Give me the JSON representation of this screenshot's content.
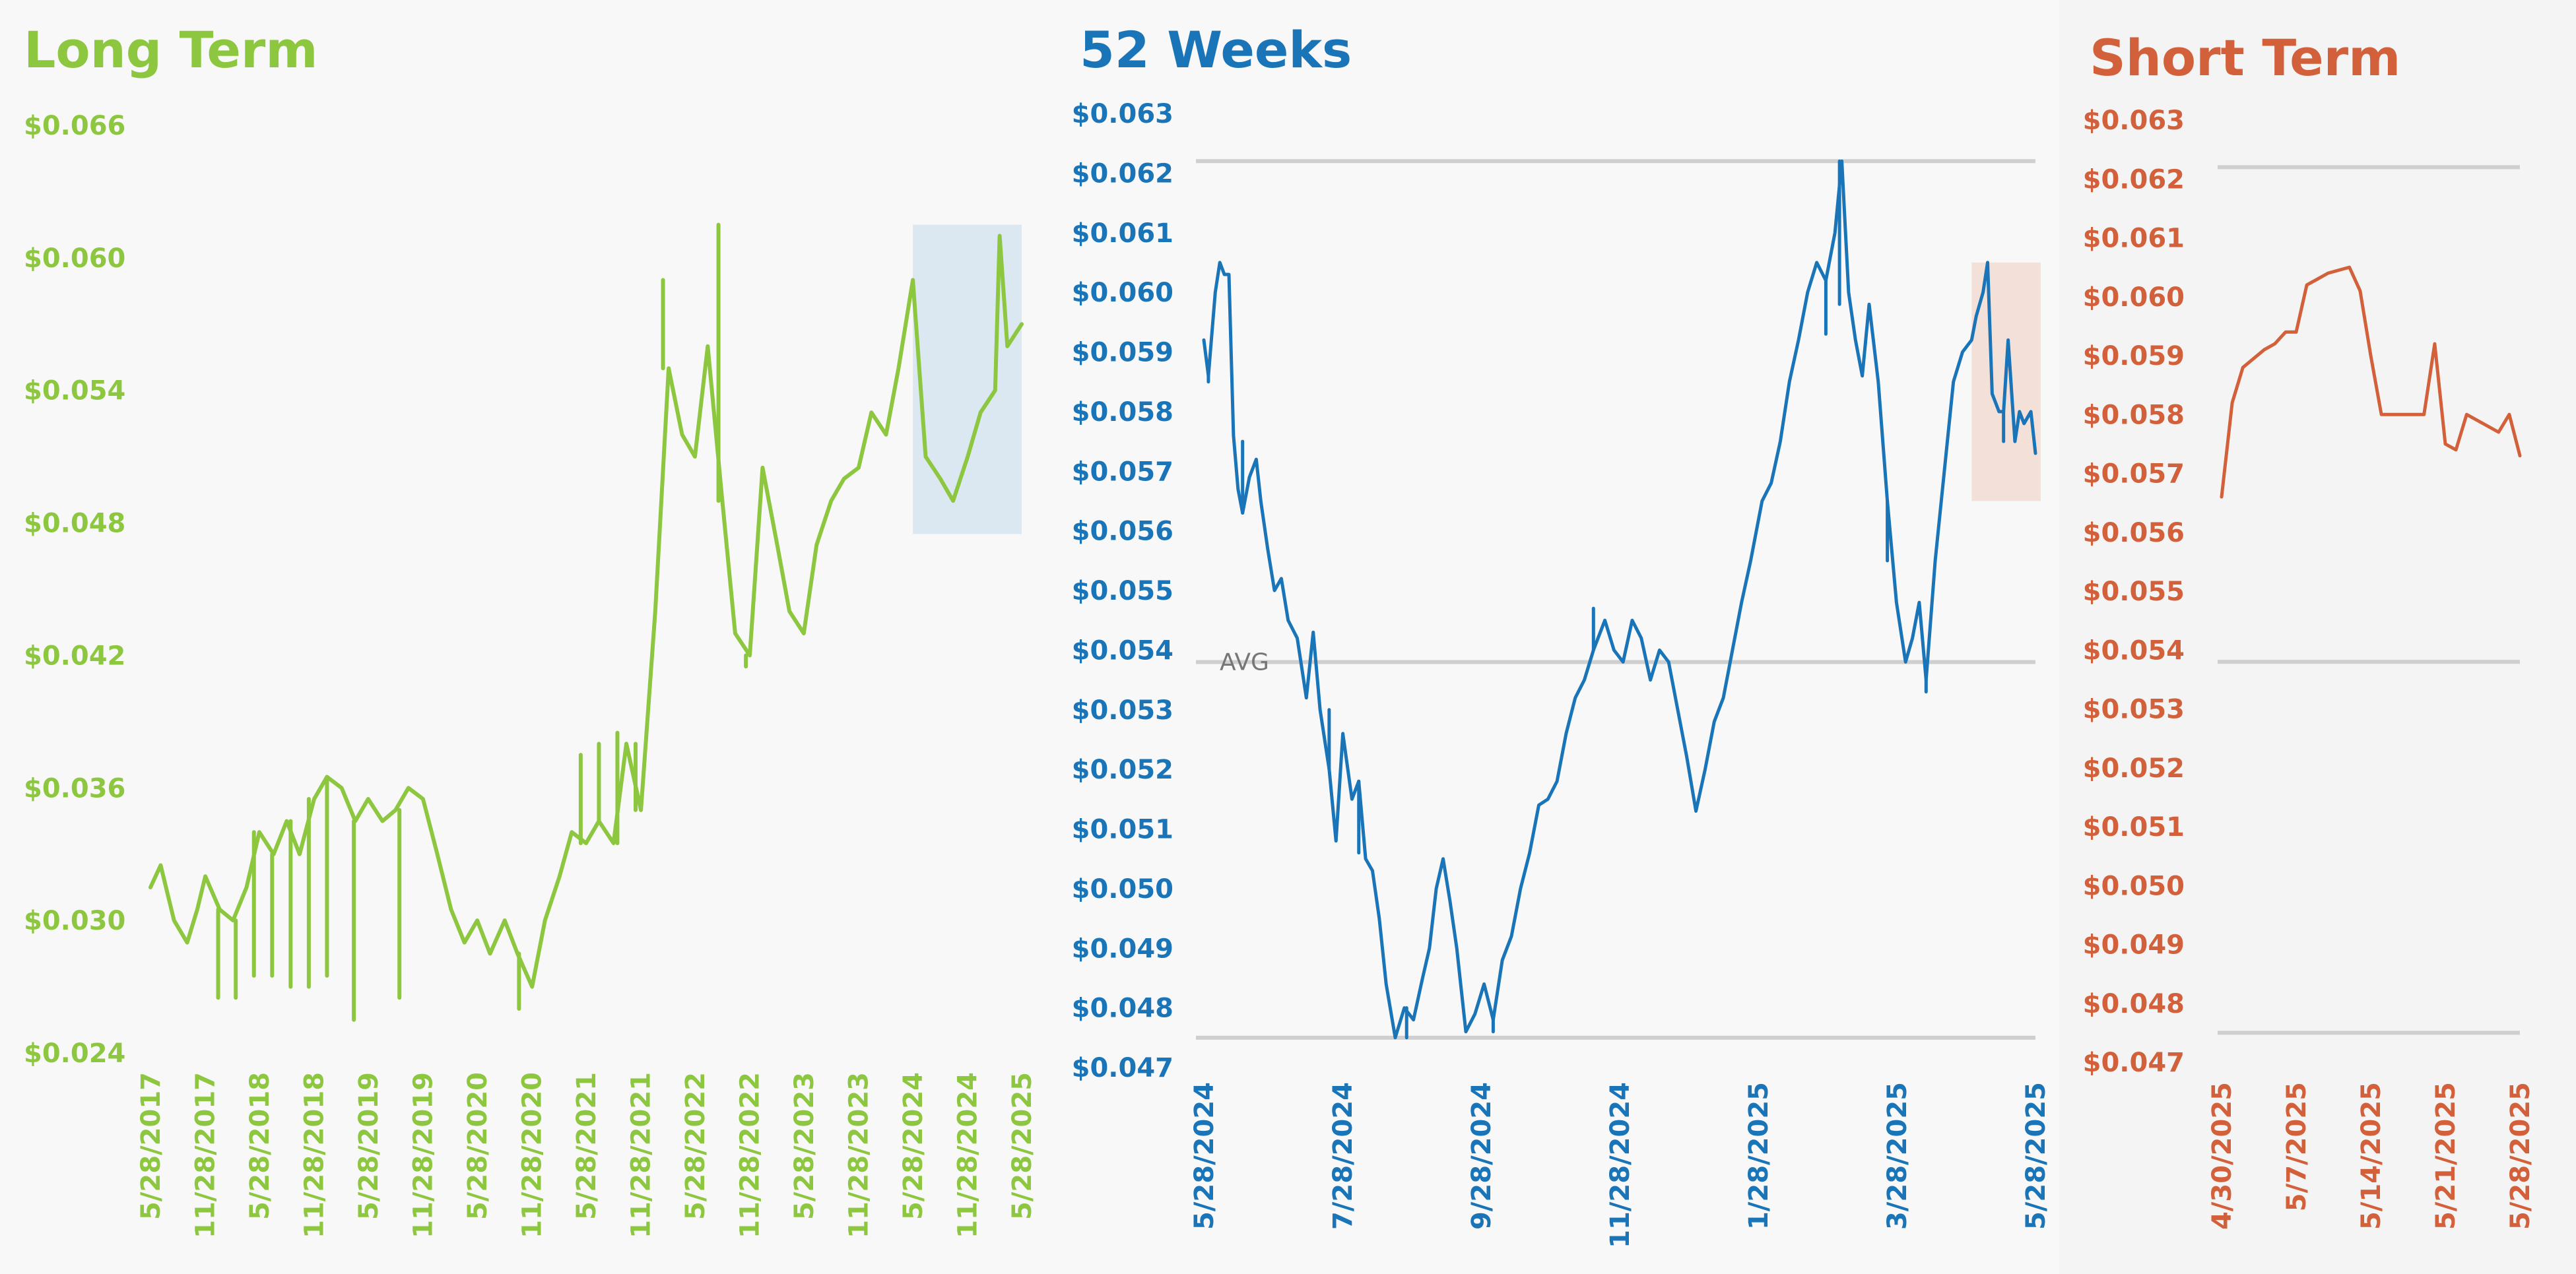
{
  "colors": {
    "long_term": "#8dc63f",
    "weeks_52": "#1a74b8",
    "short_term": "#d2603a",
    "gridline": "#cfcfcf",
    "highlight_blue": "#dbe8f2",
    "highlight_orange": "#f3e1d9"
  },
  "chart_data": [
    {
      "id": "long_term",
      "type": "line",
      "title": "Long Term",
      "ylim": [
        0.024,
        0.066
      ],
      "yticks": [
        "$0.066",
        "$0.060",
        "$0.054",
        "$0.048",
        "$0.042",
        "$0.036",
        "$0.030",
        "$0.024"
      ],
      "ytick_values": [
        0.066,
        0.06,
        0.054,
        0.048,
        0.042,
        0.036,
        0.03,
        0.024
      ],
      "xticks": [
        "5/28/2017",
        "11/28/2017",
        "5/28/2018",
        "11/28/2018",
        "5/28/2019",
        "11/28/2019",
        "5/28/2020",
        "11/28/2020",
        "5/28/2021",
        "11/28/2021",
        "5/28/2022",
        "11/28/2022",
        "5/28/2023",
        "11/28/2023",
        "5/28/2024",
        "11/28/2024",
        "5/28/2025"
      ],
      "xlim": [
        "5/28/2017",
        "5/28/2025"
      ],
      "grid": false,
      "highlight": {
        "x_from": "5/28/2024",
        "x_to": "5/28/2025",
        "y_from": 0.0475,
        "y_to": 0.0615
      },
      "series": [
        {
          "x": [
            "5/28/2017",
            "7/1/2017",
            "8/15/2017",
            "9/28/2017",
            "11/1/2017",
            "11/28/2017",
            "1/15/2018",
            "3/1/2018",
            "4/15/2018",
            "5/28/2018",
            "7/15/2018",
            "8/28/2018",
            "10/10/2018",
            "11/28/2018",
            "1/10/2019",
            "2/28/2019",
            "4/15/2019",
            "5/28/2019",
            "7/15/2019",
            "8/28/2019",
            "10/10/2019",
            "11/28/2019",
            "1/15/2020",
            "3/1/2020",
            "4/15/2020",
            "5/28/2020",
            "7/10/2020",
            "8/28/2020",
            "10/10/2020",
            "11/28/2020",
            "1/10/2021",
            "2/28/2021",
            "4/10/2021",
            "5/28/2021",
            "7/10/2021",
            "8/28/2021",
            "10/10/2021",
            "11/28/2021",
            "1/15/2022",
            "3/1/2022",
            "4/15/2022",
            "5/28/2022",
            "7/10/2022",
            "8/28/2022",
            "10/10/2022",
            "11/28/2022",
            "1/10/2023",
            "2/28/2023",
            "4/10/2023",
            "5/28/2023",
            "7/10/2023",
            "8/28/2023",
            "10/10/2023",
            "11/28/2023",
            "1/10/2024",
            "2/28/2024",
            "4/10/2024",
            "5/28/2024",
            "7/10/2024",
            "8/28/2024",
            "10/10/2024",
            "11/28/2024",
            "1/10/2025",
            "2/28/2025",
            "3/15/2025",
            "4/10/2025",
            "5/28/2025"
          ],
          "values": [
            0.0315,
            0.0325,
            0.03,
            0.029,
            0.0305,
            0.032,
            0.0305,
            0.03,
            0.0315,
            0.034,
            0.033,
            0.0345,
            0.033,
            0.0355,
            0.0365,
            0.036,
            0.0345,
            0.0355,
            0.0345,
            0.035,
            0.036,
            0.0355,
            0.033,
            0.0305,
            0.029,
            0.03,
            0.0285,
            0.03,
            0.0285,
            0.027,
            0.03,
            0.032,
            0.034,
            0.0335,
            0.0345,
            0.0335,
            0.038,
            0.035,
            0.044,
            0.055,
            0.052,
            0.051,
            0.056,
            0.049,
            0.043,
            0.042,
            0.0505,
            0.047,
            0.044,
            0.043,
            0.047,
            0.049,
            0.05,
            0.0505,
            0.053,
            0.052,
            0.055,
            0.059,
            0.051,
            0.05,
            0.049,
            0.051,
            0.053,
            0.054,
            0.061,
            0.056,
            0.057
          ],
          "spikes": [
            {
              "x": "1/10/2018",
              "value": 0.0265
            },
            {
              "x": "3/10/2018",
              "value": 0.0265
            },
            {
              "x": "5/10/2018",
              "value": 0.0275
            },
            {
              "x": "7/10/2018",
              "value": 0.0275
            },
            {
              "x": "9/10/2018",
              "value": 0.027
            },
            {
              "x": "11/10/2018",
              "value": 0.027
            },
            {
              "x": "1/10/2019",
              "value": 0.0275
            },
            {
              "x": "4/10/2019",
              "value": 0.0255
            },
            {
              "x": "9/10/2019",
              "value": 0.0265
            },
            {
              "x": "10/15/2020",
              "value": 0.026
            },
            {
              "x": "5/10/2021",
              "value": 0.0375
            },
            {
              "x": "7/10/2021",
              "value": 0.038
            },
            {
              "x": "9/10/2021",
              "value": 0.0385
            },
            {
              "x": "11/10/2021",
              "value": 0.038
            },
            {
              "x": "2/10/2022",
              "value": 0.059
            },
            {
              "x": "8/15/2022",
              "value": 0.0615
            },
            {
              "x": "11/15/2022",
              "value": 0.0415
            }
          ]
        }
      ]
    },
    {
      "id": "weeks_52",
      "type": "line",
      "title": "52 Weeks",
      "ylim": [
        0.047,
        0.063
      ],
      "yticks": [
        "$0.063",
        "$0.062",
        "$0.061",
        "$0.060",
        "$0.059",
        "$0.058",
        "$0.057",
        "$0.056",
        "$0.055",
        "$0.054",
        "$0.053",
        "$0.052",
        "$0.051",
        "$0.050",
        "$0.049",
        "$0.048",
        "$0.047"
      ],
      "ytick_values": [
        0.063,
        0.062,
        0.061,
        0.06,
        0.059,
        0.058,
        0.057,
        0.056,
        0.055,
        0.054,
        0.053,
        0.052,
        0.051,
        0.05,
        0.049,
        0.048,
        0.047
      ],
      "xticks": [
        "5/28/2024",
        "7/28/2024",
        "9/28/2024",
        "11/28/2024",
        "1/28/2025",
        "3/28/2025",
        "5/28/2025"
      ],
      "xlim": [
        "5/28/2024",
        "5/28/2025"
      ],
      "grid": false,
      "reference_lines": [
        {
          "value": 0.0622
        },
        {
          "value": 0.0538,
          "label": "AVG"
        },
        {
          "value": 0.0475
        }
      ],
      "highlight": {
        "x_from": "4/30/2025",
        "x_to": "5/28/2025",
        "y_from": 0.0565,
        "y_to": 0.0605
      },
      "series": [
        {
          "x": [
            "5/28/2024",
            "5/30/2024",
            "6/2/2024",
            "6/4/2024",
            "6/6/2024",
            "6/8/2024",
            "6/10/2024",
            "6/12/2024",
            "6/14/2024",
            "6/17/2024",
            "6/20/2024",
            "6/22/2024",
            "6/25/2024",
            "6/28/2024",
            "7/1/2024",
            "7/4/2024",
            "7/8/2024",
            "7/12/2024",
            "7/15/2024",
            "7/18/2024",
            "7/22/2024",
            "7/25/2024",
            "7/28/2024",
            "8/1/2024",
            "8/4/2024",
            "8/7/2024",
            "8/10/2024",
            "8/13/2024",
            "8/16/2024",
            "8/20/2024",
            "8/24/2024",
            "8/28/2024",
            "9/1/2024",
            "9/4/2024",
            "9/7/2024",
            "9/10/2024",
            "9/13/2024",
            "9/16/2024",
            "9/20/2024",
            "9/24/2024",
            "9/28/2024",
            "10/2/2024",
            "10/6/2024",
            "10/10/2024",
            "10/14/2024",
            "10/18/2024",
            "10/22/2024",
            "10/26/2024",
            "10/30/2024",
            "11/3/2024",
            "11/7/2024",
            "11/11/2024",
            "11/15/2024",
            "11/20/2024",
            "11/24/2024",
            "11/28/2024",
            "12/2/2024",
            "12/6/2024",
            "12/10/2024",
            "12/14/2024",
            "12/18/2024",
            "12/22/2024",
            "12/26/2024",
            "12/30/2024",
            "1/3/2025",
            "1/7/2025",
            "1/11/2025",
            "1/15/2025",
            "1/19/2025",
            "1/23/2025",
            "1/28/2025",
            "2/1/2025",
            "2/5/2025",
            "2/9/2025",
            "2/13/2025",
            "2/17/2025",
            "2/21/2025",
            "2/25/2025",
            "3/1/2025",
            "3/4/2025",
            "3/7/2025",
            "3/10/2025",
            "3/13/2025",
            "3/16/2025",
            "3/20/2025",
            "3/24/2025",
            "3/28/2025",
            "4/1/2025",
            "4/4/2025",
            "4/7/2025",
            "4/10/2025",
            "4/14/2025",
            "4/18/2025",
            "4/22/2025",
            "4/26/2025",
            "4/30/2025",
            "5/2/2025",
            "5/5/2025",
            "5/7/2025",
            "5/9/2025",
            "5/12/2025",
            "5/14/2025",
            "5/16/2025",
            "5/19/2025",
            "5/21/2025",
            "5/23/2025",
            "5/26/2025",
            "5/28/2025"
          ],
          "values": [
            0.0592,
            0.0586,
            0.06,
            0.0605,
            0.0603,
            0.0603,
            0.0576,
            0.0567,
            0.0563,
            0.0569,
            0.0572,
            0.0565,
            0.0557,
            0.055,
            0.0552,
            0.0545,
            0.0542,
            0.0532,
            0.0543,
            0.053,
            0.052,
            0.0508,
            0.0526,
            0.0515,
            0.0518,
            0.0505,
            0.0503,
            0.0495,
            0.0484,
            0.0475,
            0.048,
            0.0478,
            0.0485,
            0.049,
            0.05,
            0.0505,
            0.0498,
            0.049,
            0.0476,
            0.0479,
            0.0484,
            0.0478,
            0.0488,
            0.0492,
            0.05,
            0.0506,
            0.0514,
            0.0515,
            0.0518,
            0.0526,
            0.0532,
            0.0535,
            0.054,
            0.0545,
            0.054,
            0.0538,
            0.0545,
            0.0542,
            0.0535,
            0.054,
            0.0538,
            0.053,
            0.0522,
            0.0513,
            0.052,
            0.0528,
            0.0532,
            0.054,
            0.0548,
            0.0555,
            0.0565,
            0.0568,
            0.0575,
            0.0585,
            0.0592,
            0.06,
            0.0605,
            0.0602,
            0.061,
            0.0622,
            0.06,
            0.0592,
            0.0586,
            0.0598,
            0.0585,
            0.0565,
            0.0548,
            0.0538,
            0.0542,
            0.0548,
            0.0535,
            0.0555,
            0.057,
            0.0585,
            0.059,
            0.0592,
            0.0596,
            0.06,
            0.0605,
            0.0583,
            0.058,
            0.058,
            0.0592,
            0.0575,
            0.058,
            0.0578,
            0.058,
            0.0573
          ],
          "spikes": [
            {
              "x": "5/30/2024",
              "value": 0.0585
            },
            {
              "x": "6/14/2024",
              "value": 0.0575
            },
            {
              "x": "7/22/2024",
              "value": 0.053
            },
            {
              "x": "8/4/2024",
              "value": 0.0506
            },
            {
              "x": "8/25/2024",
              "value": 0.0475
            },
            {
              "x": "10/2/2024",
              "value": 0.0476
            },
            {
              "x": "11/15/2024",
              "value": 0.0547
            },
            {
              "x": "2/25/2025",
              "value": 0.0593
            },
            {
              "x": "3/3/2025",
              "value": 0.0598
            },
            {
              "x": "3/24/2025",
              "value": 0.0555
            },
            {
              "x": "4/10/2025",
              "value": 0.0533
            },
            {
              "x": "5/14/2025",
              "value": 0.0575
            }
          ]
        }
      ]
    },
    {
      "id": "short_term",
      "type": "line",
      "title": "Short Term",
      "ylim": [
        0.047,
        0.063
      ],
      "yticks": [
        "$0.063",
        "$0.062",
        "$0.061",
        "$0.060",
        "$0.059",
        "$0.058",
        "$0.057",
        "$0.056",
        "$0.055",
        "$0.054",
        "$0.053",
        "$0.052",
        "$0.051",
        "$0.050",
        "$0.049",
        "$0.048",
        "$0.047"
      ],
      "ytick_values": [
        0.063,
        0.062,
        0.061,
        0.06,
        0.059,
        0.058,
        0.057,
        0.056,
        0.055,
        0.054,
        0.053,
        0.052,
        0.051,
        0.05,
        0.049,
        0.048,
        0.047
      ],
      "xticks": [
        "4/30/2025",
        "5/7/2025",
        "5/14/2025",
        "5/21/2025",
        "5/28/2025"
      ],
      "xlim": [
        "4/30/2025",
        "5/28/2025"
      ],
      "grid": false,
      "reference_lines": [
        {
          "value": 0.0622
        },
        {
          "value": 0.0538
        },
        {
          "value": 0.0475
        }
      ],
      "series": [
        {
          "x": [
            "4/30/2025",
            "5/1/2025",
            "5/2/2025",
            "5/4/2025",
            "5/5/2025",
            "5/6/2025",
            "5/7/2025",
            "5/8/2025",
            "5/9/2025",
            "5/10/2025",
            "5/12/2025",
            "5/13/2025",
            "5/14/2025",
            "5/15/2025",
            "5/16/2025",
            "5/19/2025",
            "5/20/2025",
            "5/21/2025",
            "5/22/2025",
            "5/23/2025",
            "5/26/2025",
            "5/27/2025",
            "5/28/2025"
          ],
          "values": [
            0.0566,
            0.0582,
            0.0588,
            0.0591,
            0.0592,
            0.0594,
            0.0594,
            0.0602,
            0.0603,
            0.0604,
            0.0605,
            0.0601,
            0.059,
            0.058,
            0.058,
            0.058,
            0.0592,
            0.0575,
            0.0574,
            0.058,
            0.0577,
            0.058,
            0.0573
          ]
        }
      ]
    }
  ]
}
